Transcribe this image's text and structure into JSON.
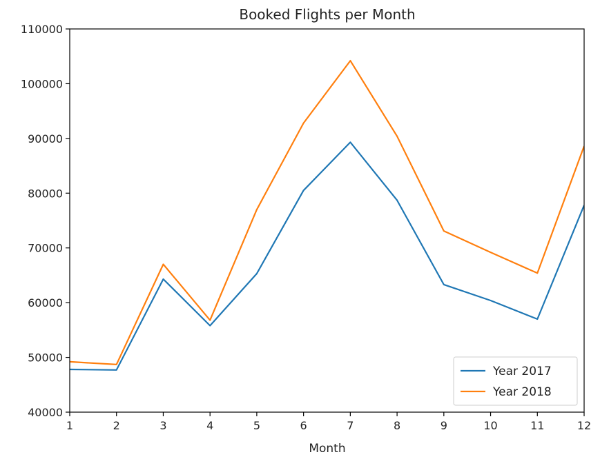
{
  "chart_data": {
    "type": "line",
    "title": "Booked Flights per Month",
    "xlabel": "Month",
    "ylabel": "",
    "x": [
      1,
      2,
      3,
      4,
      5,
      6,
      7,
      8,
      9,
      10,
      11,
      12
    ],
    "x_tick_labels": [
      "1",
      "2",
      "3",
      "4",
      "5",
      "6",
      "7",
      "8",
      "9",
      "10",
      "11",
      "12"
    ],
    "xlim": [
      1,
      12
    ],
    "ylim": [
      40000,
      110000
    ],
    "y_ticks": [
      40000,
      50000,
      60000,
      70000,
      80000,
      90000,
      100000,
      110000
    ],
    "y_tick_labels": [
      "40000",
      "50000",
      "60000",
      "70000",
      "80000",
      "90000",
      "100000",
      "110000"
    ],
    "grid": false,
    "legend_position": "bottom-right",
    "series": [
      {
        "name": "Year 2017",
        "color": "#1f77b4",
        "values": [
          47800,
          47700,
          64300,
          55800,
          65300,
          80500,
          89300,
          78700,
          63300,
          60400,
          57000,
          77800
        ]
      },
      {
        "name": "Year 2018",
        "color": "#ff7f0e",
        "values": [
          49200,
          48700,
          67000,
          56800,
          77000,
          92800,
          104200,
          90400,
          73100,
          69200,
          65400,
          88600
        ]
      }
    ]
  }
}
